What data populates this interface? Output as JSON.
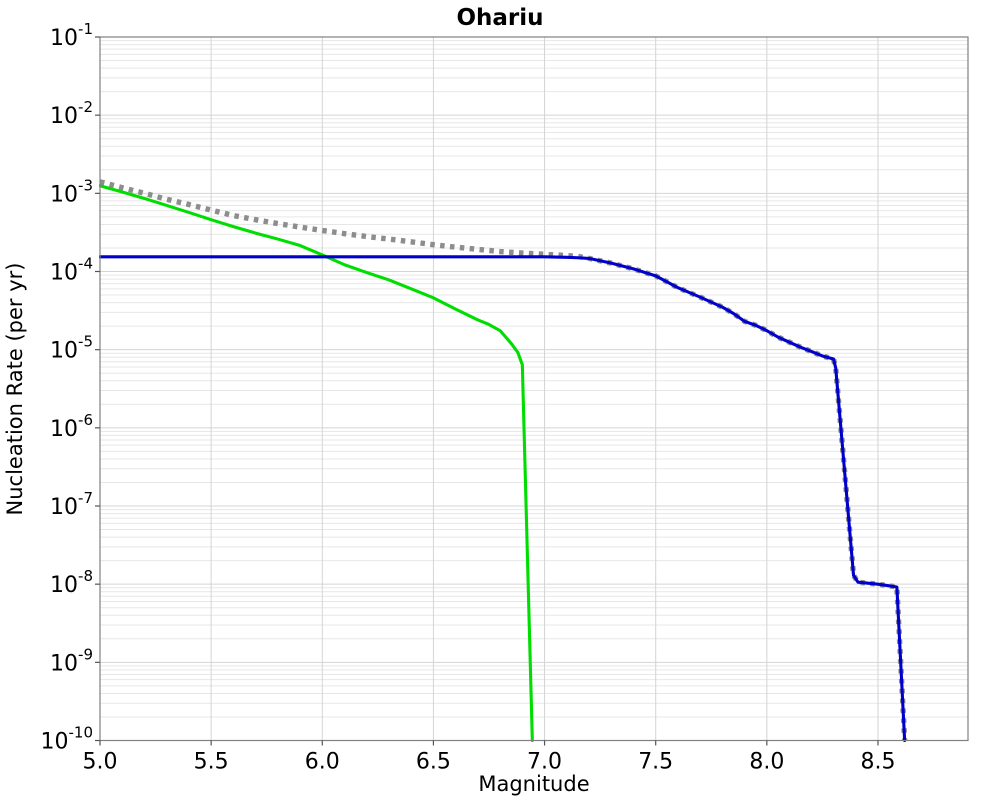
{
  "chart_data": {
    "type": "line",
    "title": "Ohariu",
    "xlabel": "Magnitude",
    "ylabel": "Nucleation Rate (per yr)",
    "xlim": [
      5.0,
      8.905
    ],
    "ylog_lim": [
      -10,
      -1
    ],
    "x_ticks": [
      5.0,
      5.5,
      6.0,
      6.5,
      7.0,
      7.5,
      8.0,
      8.5
    ],
    "x_tick_labels": [
      "5.0",
      "5.5",
      "6.0",
      "6.5",
      "7.0",
      "7.5",
      "8.0",
      "8.5"
    ],
    "y_tick_exponents": [
      -1,
      -2,
      -3,
      -4,
      -5,
      -6,
      -7,
      -8,
      -9,
      -10
    ],
    "grid": {
      "major": true,
      "log_minor": true,
      "vertical_major": true
    },
    "legend": "none",
    "colors": {
      "plot_background": "#ffffff",
      "plot_border": "#808080",
      "grid_major": "#d4d4d4",
      "grid_minor": "#e7e7e7",
      "tick": "#555555",
      "series_dotted": "#8d8d8d",
      "series_green": "#00dd00",
      "series_blue": "#0000cc"
    },
    "series": [
      {
        "name": "gray-dotted",
        "style": "dotted",
        "color": "#8d8d8d",
        "points": [
          [
            5.0,
            0.0014
          ],
          [
            5.1,
            0.00118
          ],
          [
            5.2,
            0.001
          ],
          [
            5.3,
            0.00084
          ],
          [
            5.4,
            0.00072
          ],
          [
            5.5,
            0.00061
          ],
          [
            5.6,
            0.00052
          ],
          [
            5.7,
            0.00046
          ],
          [
            5.8,
            0.00041
          ],
          [
            5.9,
            0.00037
          ],
          [
            6.0,
            0.000335
          ],
          [
            6.1,
            0.000305
          ],
          [
            6.2,
            0.00028
          ],
          [
            6.3,
            0.00026
          ],
          [
            6.4,
            0.00024
          ],
          [
            6.5,
            0.00022
          ],
          [
            6.6,
            0.000205
          ],
          [
            6.7,
            0.000192
          ],
          [
            6.8,
            0.00018
          ],
          [
            6.9,
            0.000172
          ],
          [
            7.0,
            0.000166
          ],
          [
            7.1,
            0.00016
          ],
          [
            7.15,
            0.000156
          ],
          [
            7.2,
            0.000147
          ],
          [
            7.3,
            0.000128
          ],
          [
            7.4,
            0.000108
          ],
          [
            7.5,
            8.8e-05
          ],
          [
            7.55,
            7.4e-05
          ],
          [
            7.6,
            6.2e-05
          ],
          [
            7.7,
            4.7e-05
          ],
          [
            7.8,
            3.5e-05
          ],
          [
            7.85,
            2.9e-05
          ],
          [
            7.9,
            2.3e-05
          ],
          [
            7.95,
            2.05e-05
          ],
          [
            8.0,
            1.75e-05
          ],
          [
            8.05,
            1.45e-05
          ],
          [
            8.1,
            1.25e-05
          ],
          [
            8.15,
            1.08e-05
          ],
          [
            8.2,
            9.5e-06
          ],
          [
            8.25,
            8.3e-06
          ],
          [
            8.3,
            7.6e-06
          ],
          [
            8.31,
            5.8e-06
          ],
          [
            8.39,
            1.3e-08
          ],
          [
            8.41,
            1.06e-08
          ],
          [
            8.5,
            1e-08
          ],
          [
            8.585,
            9.2e-09
          ],
          [
            8.62,
            1e-10
          ]
        ]
      },
      {
        "name": "green-solid",
        "style": "solid",
        "color": "#00dd00",
        "points": [
          [
            5.0,
            0.00125
          ],
          [
            5.1,
            0.00104
          ],
          [
            5.2,
            0.00086
          ],
          [
            5.3,
            0.0007
          ],
          [
            5.4,
            0.00057
          ],
          [
            5.5,
            0.00046
          ],
          [
            5.6,
            0.000375
          ],
          [
            5.7,
            0.00031
          ],
          [
            5.8,
            0.00026
          ],
          [
            5.9,
            0.000215
          ],
          [
            6.0,
            0.000163
          ],
          [
            6.1,
            0.000122
          ],
          [
            6.2,
            9.7e-05
          ],
          [
            6.3,
            7.8e-05
          ],
          [
            6.4,
            6e-05
          ],
          [
            6.5,
            4.6e-05
          ],
          [
            6.6,
            3.3e-05
          ],
          [
            6.7,
            2.4e-05
          ],
          [
            6.75,
            2.1e-05
          ],
          [
            6.8,
            1.75e-05
          ],
          [
            6.85,
            1.2e-05
          ],
          [
            6.88,
            9.2e-06
          ],
          [
            6.9,
            6.4e-06
          ],
          [
            6.945,
            1e-10
          ]
        ]
      },
      {
        "name": "blue-solid",
        "style": "solid",
        "color": "#0000cc",
        "points": [
          [
            5.0,
            0.000154
          ],
          [
            6.0,
            0.000154
          ],
          [
            7.0,
            0.000154
          ],
          [
            7.1,
            0.000152
          ],
          [
            7.15,
            0.00015
          ],
          [
            7.2,
            0.000147
          ],
          [
            7.3,
            0.000128
          ],
          [
            7.4,
            0.000108
          ],
          [
            7.5,
            8.8e-05
          ],
          [
            7.55,
            7.4e-05
          ],
          [
            7.6,
            6.2e-05
          ],
          [
            7.7,
            4.7e-05
          ],
          [
            7.8,
            3.5e-05
          ],
          [
            7.85,
            2.9e-05
          ],
          [
            7.9,
            2.3e-05
          ],
          [
            7.95,
            2.05e-05
          ],
          [
            8.0,
            1.75e-05
          ],
          [
            8.05,
            1.45e-05
          ],
          [
            8.1,
            1.25e-05
          ],
          [
            8.15,
            1.08e-05
          ],
          [
            8.2,
            9.5e-06
          ],
          [
            8.25,
            8.3e-06
          ],
          [
            8.3,
            7.6e-06
          ],
          [
            8.31,
            5.8e-06
          ],
          [
            8.39,
            1.3e-08
          ],
          [
            8.41,
            1.06e-08
          ],
          [
            8.5,
            1e-08
          ],
          [
            8.585,
            9.2e-09
          ],
          [
            8.62,
            1e-10
          ]
        ]
      }
    ]
  }
}
